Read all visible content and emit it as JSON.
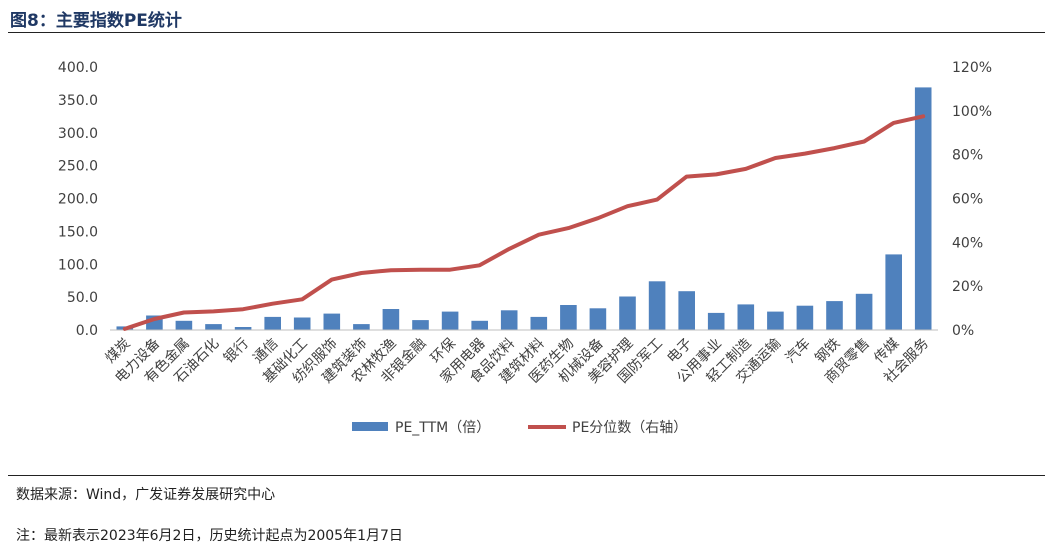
{
  "figure": {
    "title": "图8：主要指数PE统计",
    "source": "数据来源：Wind，广发证券发展研究中心",
    "note": "注：最新表示2023年6月2日，历史统计起点为2005年1月7日"
  },
  "colors": {
    "bar": "#4f81bd",
    "line": "#c0504d",
    "title": "#1f3864"
  },
  "chart_data": {
    "type": "bar",
    "categories": [
      "煤炭",
      "电力设备",
      "有色金属",
      "石油石化",
      "银行",
      "通信",
      "基础化工",
      "纺织服饰",
      "建筑装饰",
      "农林牧渔",
      "非银金融",
      "环保",
      "家用电器",
      "食品饮料",
      "建筑材料",
      "医药生物",
      "机械设备",
      "美容护理",
      "国防军工",
      "电子",
      "公用事业",
      "轻工制造",
      "交通运输",
      "汽车",
      "钢铁",
      "商贸零售",
      "传媒",
      "社会服务"
    ],
    "series": [
      {
        "name": "PE_TTM（倍）",
        "type": "bar",
        "axis": "left",
        "values": [
          5.5,
          22,
          14,
          9,
          4.5,
          20,
          19,
          25,
          9,
          32,
          15,
          28,
          14,
          30,
          20,
          38,
          33,
          51,
          74,
          59,
          26,
          39,
          28,
          37,
          44,
          55,
          115,
          369
        ]
      },
      {
        "name": "PE分位数（右轴）",
        "type": "line",
        "axis": "right",
        "values": [
          0.5,
          5,
          8,
          8.5,
          9.5,
          12,
          14,
          23,
          26,
          27.3,
          27.5,
          27.5,
          29.5,
          37,
          43.5,
          46.5,
          51,
          56.5,
          59.5,
          70,
          71,
          73.5,
          78.5,
          80.5,
          83,
          86,
          94.5,
          97.5
        ]
      }
    ],
    "yleft": {
      "min": 0,
      "max": 400,
      "ticks": [
        "0.0",
        "50.0",
        "100.0",
        "150.0",
        "200.0",
        "250.0",
        "300.0",
        "350.0",
        "400.0"
      ]
    },
    "yright": {
      "min": 0,
      "max": 120,
      "ticks": [
        "0%",
        "20%",
        "40%",
        "60%",
        "80%",
        "100%",
        "120%"
      ]
    },
    "grid": false,
    "legend_position": "bottom-center"
  }
}
